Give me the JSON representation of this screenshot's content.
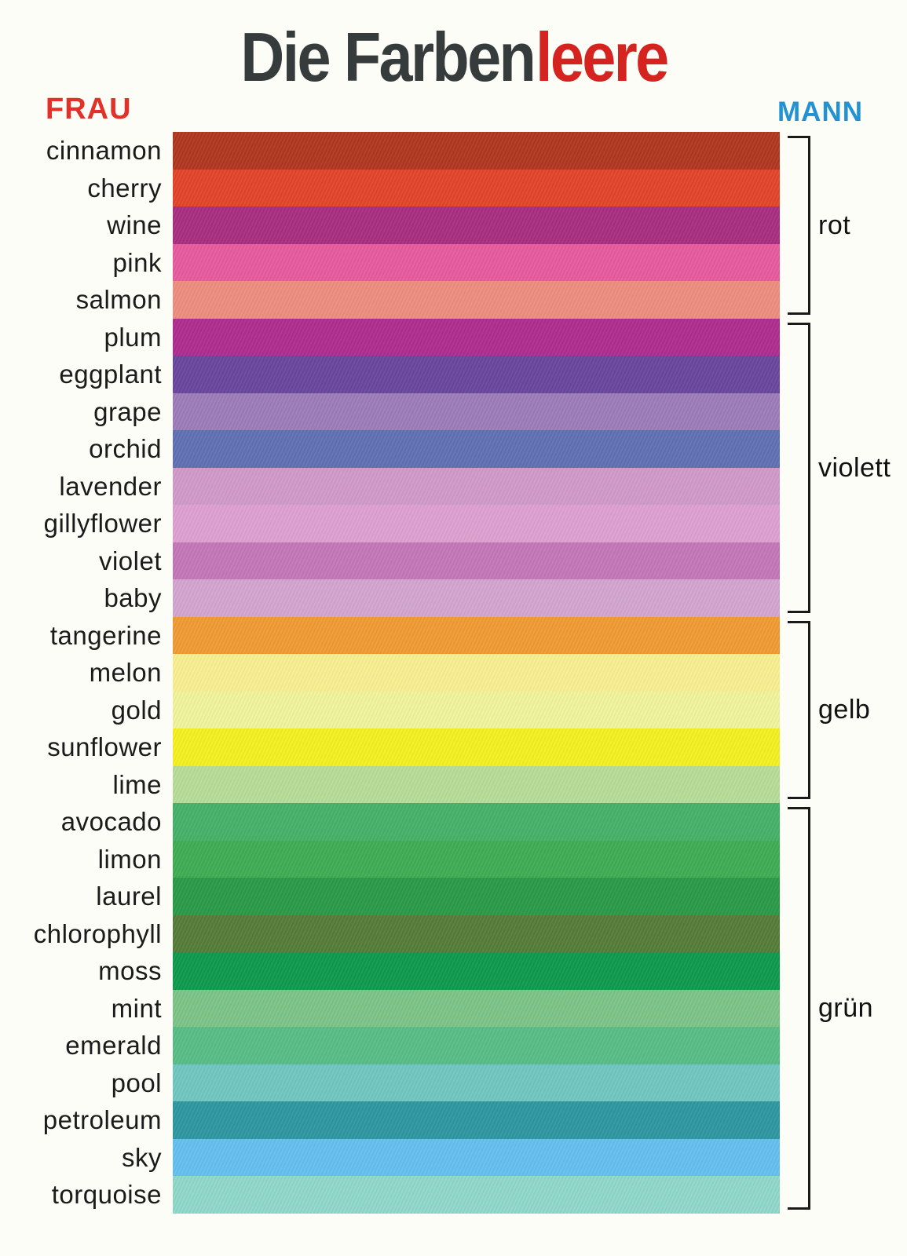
{
  "poster": {
    "title": {
      "black": "Die Farben",
      "red": "leere"
    },
    "left_header": "Frau",
    "right_header": "Mann",
    "colors": {
      "background": "#fdfdf8",
      "title_black": "#363c3b",
      "title_red": "#d5231f",
      "frau_red": "#e13128",
      "mann_blue": "#2292d2",
      "label_ink": "#1b1b1b",
      "bracket_ink": "#1a1a1a"
    }
  },
  "groups": [
    {
      "label": "rot",
      "stripes": [
        {
          "name": "cinnamon",
          "color": "#b0371f"
        },
        {
          "name": "cherry",
          "color": "#e2452a"
        },
        {
          "name": "wine",
          "color": "#a82e80"
        },
        {
          "name": "pink",
          "color": "#e75b9e"
        },
        {
          "name": "salmon",
          "color": "#ec8d80"
        }
      ]
    },
    {
      "label": "violett",
      "stripes": [
        {
          "name": "plum",
          "color": "#ae2c8e"
        },
        {
          "name": "eggplant",
          "color": "#69479d"
        },
        {
          "name": "grape",
          "color": "#9d7cb8"
        },
        {
          "name": "orchid",
          "color": "#6070b2"
        },
        {
          "name": "lavender",
          "color": "#d09ac8"
        },
        {
          "name": "gillyflower",
          "color": "#dda0d0"
        },
        {
          "name": "violet",
          "color": "#c377b7"
        },
        {
          "name": "baby",
          "color": "#d2a5ce"
        }
      ]
    },
    {
      "label": "gelb",
      "stripes": [
        {
          "name": "tangerine",
          "color": "#f09b33"
        },
        {
          "name": "melon",
          "color": "#f9ee90"
        },
        {
          "name": "gold",
          "color": "#f0f39b"
        },
        {
          "name": "sunflower",
          "color": "#f4f021"
        },
        {
          "name": "lime",
          "color": "#b7dc98"
        }
      ]
    },
    {
      "label": "grün",
      "stripes": [
        {
          "name": "avocado",
          "color": "#45b168"
        },
        {
          "name": "limon",
          "color": "#3ead52"
        },
        {
          "name": "laurel",
          "color": "#2a9a48"
        },
        {
          "name": "chlorophyll",
          "color": "#557c38"
        },
        {
          "name": "moss",
          "color": "#0d9b4d"
        },
        {
          "name": "mint",
          "color": "#7cc487"
        },
        {
          "name": "emerald",
          "color": "#58bd85"
        },
        {
          "name": "pool",
          "color": "#6fc7c0"
        },
        {
          "name": "petroleum",
          "color": "#2d97a0"
        },
        {
          "name": "sky",
          "color": "#64c0ee"
        },
        {
          "name": "torquoise",
          "color": "#8fd8c9"
        }
      ]
    }
  ]
}
